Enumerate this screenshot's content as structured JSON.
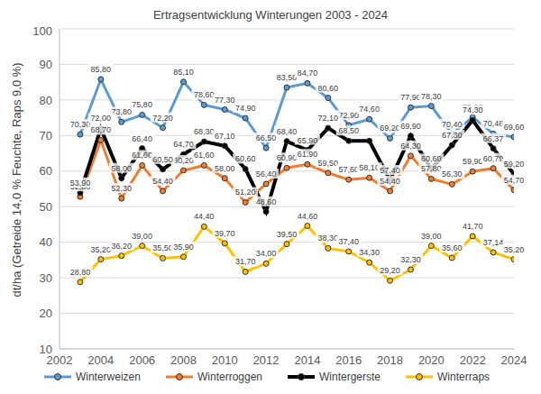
{
  "chart_data": {
    "type": "line",
    "title": "Ertragsentwicklung Winterungen 2003 - 2024",
    "y_label": "dt/ha (Getreide 14,0 % Feuchte, Raps 9,0 %)",
    "x": [
      2003,
      2004,
      2005,
      2006,
      2007,
      2008,
      2009,
      2010,
      2011,
      2012,
      2013,
      2014,
      2015,
      2016,
      2017,
      2018,
      2019,
      2020,
      2021,
      2022,
      2023,
      2024
    ],
    "xlim": [
      2002,
      2024
    ],
    "xticks": [
      2002,
      2004,
      2006,
      2008,
      2010,
      2012,
      2014,
      2016,
      2018,
      2020,
      2022,
      2024
    ],
    "ylim": [
      10,
      100
    ],
    "yticks": [
      10,
      20,
      30,
      40,
      50,
      60,
      70,
      80,
      90,
      100
    ],
    "grid": true,
    "legend": "bottom",
    "data_labels": true,
    "series": [
      {
        "name": "Winterweizen",
        "color": "#5b9bd5",
        "marker": "circle",
        "values": [
          70.3,
          85.8,
          73.8,
          75.8,
          72.2,
          85.1,
          78.6,
          77.3,
          74.9,
          66.5,
          83.5,
          84.7,
          80.6,
          72.9,
          74.6,
          69.2,
          77.9,
          78.3,
          70.4,
          75.2,
          70.48,
          69.6
        ],
        "value_labels": [
          "70,30",
          "85,80",
          "73,80",
          "75,80",
          "72,20",
          "85,10",
          "78,60",
          "77,30",
          "74,90",
          "66,50",
          "83,50",
          "84,70",
          "80,60",
          "72,90",
          "74,60",
          "69,20",
          "77,90",
          "78,30",
          "70,40",
          "75,20",
          "70,48",
          "69,60"
        ]
      },
      {
        "name": "Winterroggen",
        "color": "#ed7d31",
        "marker": "circle",
        "values": [
          52.8,
          68.7,
          52.3,
          61.6,
          54.4,
          60.2,
          61.6,
          58.0,
          51.2,
          56.4,
          60.9,
          61.9,
          59.5,
          57.6,
          58.1,
          54.4,
          64.3,
          57.8,
          56.3,
          59.9,
          60.79,
          54.7
        ],
        "value_labels": [
          "52,80",
          "68,70",
          "52,30",
          "61,60",
          "54,40",
          "60,20",
          "61,60",
          "58,00",
          "51,20",
          "56,40",
          "60,90",
          "61,90",
          "59,50",
          "57,60",
          "58,10",
          "54,40",
          "64,30",
          "57,80",
          "56,30",
          "59,90",
          "60,79",
          "54,70"
        ]
      },
      {
        "name": "Wintergerste",
        "color": "#000000",
        "marker": "circle",
        "values": [
          53.9,
          72.0,
          58.0,
          66.4,
          60.5,
          64.7,
          68.3,
          67.1,
          60.6,
          48.6,
          68.4,
          65.9,
          72.1,
          68.5,
          68.5,
          57.4,
          69.9,
          60.6,
          67.3,
          74.3,
          66.37,
          59.2
        ],
        "value_labels": [
          "53,90",
          "72,00",
          "58,00",
          "66,40",
          "60,50",
          "64,70",
          "68,30",
          "67,10",
          "60,60",
          "48,60",
          "68,40",
          "65,90",
          "72,10",
          "68,50",
          null,
          "57,40",
          "69,90",
          "60,60",
          "67,30",
          "74,30",
          "66,37",
          "59,20"
        ]
      },
      {
        "name": "Winterraps",
        "color": "#ffc000",
        "marker": "circle",
        "values": [
          28.8,
          35.2,
          36.2,
          39.0,
          35.5,
          35.9,
          44.4,
          39.7,
          31.7,
          34.0,
          39.5,
          44.6,
          38.3,
          37.4,
          34.3,
          29.2,
          32.3,
          39.0,
          35.6,
          41.7,
          37.14,
          35.2
        ],
        "value_labels": [
          "28,80",
          "35,20",
          "36,20",
          "39,00",
          "35,50",
          "35,90",
          "44,40",
          "39,70",
          "31,70",
          "34,00",
          "39,50",
          "44,60",
          "38,30",
          "37,40",
          "34,30",
          "29,20",
          "32,30",
          "39,00",
          "35,60",
          "41,70",
          "37,14",
          "35,20"
        ]
      }
    ]
  }
}
